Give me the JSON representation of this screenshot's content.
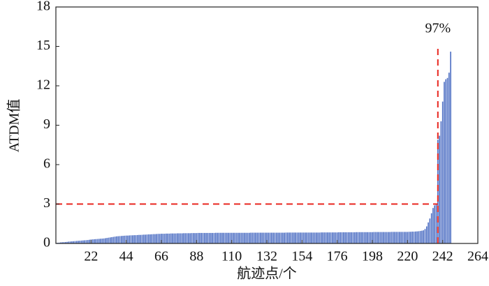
{
  "chart_data": {
    "type": "bar",
    "x_label": "航迹点/个",
    "y_label": "ATDM值",
    "annotation": "97%",
    "color": "#4a6cc2",
    "threshold_color": "#e8261f",
    "hline": 3,
    "vline": 239,
    "xlim": [
      0,
      264
    ],
    "xticks": [
      22,
      44,
      66,
      88,
      110,
      132,
      154,
      176,
      198,
      220,
      242,
      264
    ],
    "ylim": [
      0,
      18
    ],
    "yticks": [
      0,
      3,
      6,
      9,
      12,
      15,
      18
    ],
    "x": [
      1,
      2,
      3,
      4,
      5,
      6,
      7,
      8,
      9,
      10,
      11,
      12,
      13,
      14,
      15,
      16,
      17,
      18,
      19,
      20,
      21,
      22,
      23,
      24,
      25,
      26,
      27,
      28,
      29,
      30,
      31,
      32,
      33,
      34,
      35,
      36,
      37,
      38,
      39,
      40,
      41,
      42,
      43,
      44,
      45,
      46,
      47,
      48,
      49,
      50,
      51,
      52,
      53,
      54,
      55,
      56,
      57,
      58,
      59,
      60,
      61,
      62,
      63,
      64,
      65,
      66,
      67,
      68,
      69,
      70,
      71,
      72,
      73,
      74,
      75,
      76,
      77,
      78,
      79,
      80,
      81,
      82,
      83,
      84,
      85,
      86,
      87,
      88,
      89,
      90,
      91,
      92,
      93,
      94,
      95,
      96,
      97,
      98,
      99,
      100,
      101,
      102,
      103,
      104,
      105,
      106,
      107,
      108,
      109,
      110,
      111,
      112,
      113,
      114,
      115,
      116,
      117,
      118,
      119,
      120,
      121,
      122,
      123,
      124,
      125,
      126,
      127,
      128,
      129,
      130,
      131,
      132,
      133,
      134,
      135,
      136,
      137,
      138,
      139,
      140,
      141,
      142,
      143,
      144,
      145,
      146,
      147,
      148,
      149,
      150,
      151,
      152,
      153,
      154,
      155,
      156,
      157,
      158,
      159,
      160,
      161,
      162,
      163,
      164,
      165,
      166,
      167,
      168,
      169,
      170,
      171,
      172,
      173,
      174,
      175,
      176,
      177,
      178,
      179,
      180,
      181,
      182,
      183,
      184,
      185,
      186,
      187,
      188,
      189,
      190,
      191,
      192,
      193,
      194,
      195,
      196,
      197,
      198,
      199,
      200,
      201,
      202,
      203,
      204,
      205,
      206,
      207,
      208,
      209,
      210,
      211,
      212,
      213,
      214,
      215,
      216,
      217,
      218,
      219,
      220,
      221,
      222,
      223,
      224,
      225,
      226,
      227,
      228,
      229,
      230,
      231,
      232,
      233,
      234,
      235,
      236,
      237,
      238,
      239,
      240,
      241,
      242,
      243,
      244,
      245,
      246,
      247
    ],
    "values": [
      0.05,
      0.06,
      0.08,
      0.09,
      0.1,
      0.11,
      0.12,
      0.14,
      0.15,
      0.16,
      0.17,
      0.18,
      0.19,
      0.2,
      0.21,
      0.22,
      0.23,
      0.24,
      0.25,
      0.26,
      0.28,
      0.3,
      0.31,
      0.32,
      0.33,
      0.34,
      0.35,
      0.36,
      0.37,
      0.38,
      0.4,
      0.42,
      0.44,
      0.46,
      0.48,
      0.5,
      0.52,
      0.54,
      0.55,
      0.56,
      0.57,
      0.58,
      0.59,
      0.6,
      0.6,
      0.61,
      0.62,
      0.62,
      0.63,
      0.63,
      0.64,
      0.65,
      0.65,
      0.66,
      0.67,
      0.67,
      0.68,
      0.69,
      0.69,
      0.7,
      0.71,
      0.71,
      0.72,
      0.73,
      0.73,
      0.74,
      0.74,
      0.74,
      0.75,
      0.75,
      0.75,
      0.76,
      0.76,
      0.76,
      0.76,
      0.77,
      0.77,
      0.77,
      0.77,
      0.78,
      0.78,
      0.78,
      0.78,
      0.78,
      0.79,
      0.79,
      0.79,
      0.79,
      0.8,
      0.8,
      0.8,
      0.8,
      0.8,
      0.8,
      0.8,
      0.8,
      0.8,
      0.8,
      0.8,
      0.81,
      0.81,
      0.81,
      0.81,
      0.81,
      0.81,
      0.81,
      0.81,
      0.81,
      0.81,
      0.81,
      0.81,
      0.81,
      0.81,
      0.81,
      0.81,
      0.81,
      0.81,
      0.81,
      0.81,
      0.81,
      0.81,
      0.82,
      0.82,
      0.82,
      0.82,
      0.82,
      0.82,
      0.82,
      0.82,
      0.82,
      0.82,
      0.82,
      0.82,
      0.82,
      0.82,
      0.82,
      0.82,
      0.82,
      0.82,
      0.82,
      0.82,
      0.82,
      0.82,
      0.83,
      0.83,
      0.83,
      0.83,
      0.83,
      0.83,
      0.83,
      0.83,
      0.83,
      0.83,
      0.83,
      0.83,
      0.83,
      0.83,
      0.83,
      0.83,
      0.83,
      0.83,
      0.83,
      0.83,
      0.83,
      0.83,
      0.84,
      0.84,
      0.84,
      0.84,
      0.84,
      0.84,
      0.84,
      0.84,
      0.84,
      0.84,
      0.84,
      0.85,
      0.85,
      0.85,
      0.85,
      0.85,
      0.85,
      0.85,
      0.85,
      0.85,
      0.85,
      0.85,
      0.86,
      0.86,
      0.86,
      0.86,
      0.86,
      0.86,
      0.86,
      0.86,
      0.86,
      0.86,
      0.86,
      0.87,
      0.87,
      0.87,
      0.87,
      0.87,
      0.87,
      0.87,
      0.87,
      0.87,
      0.87,
      0.87,
      0.88,
      0.88,
      0.88,
      0.88,
      0.88,
      0.88,
      0.88,
      0.88,
      0.88,
      0.88,
      0.88,
      0.89,
      0.89,
      0.9,
      0.9,
      0.91,
      0.92,
      0.93,
      0.95,
      0.97,
      1.0,
      1.1,
      1.3,
      1.6,
      1.9,
      2.3,
      2.7,
      2.9,
      3.0,
      7.9,
      8.2,
      9.3,
      10.8,
      12.3,
      12.5,
      12.6,
      13.0,
      14.6
    ]
  }
}
